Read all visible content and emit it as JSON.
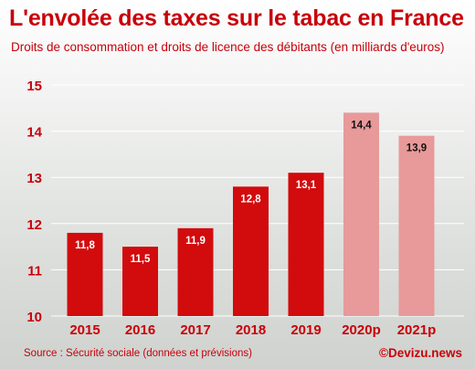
{
  "header": {
    "title": "L'envolée des taxes sur le tabac en France",
    "subtitle": "Droits de consommation et droits de licence des débitants (en milliards d'euros)"
  },
  "footer": {
    "source": "Source : Sécurité sociale (données et prévisions)",
    "credit": "©Devizu.news"
  },
  "colors": {
    "accent": "#c8000a",
    "bar_actual": "#d20b0d",
    "bar_forecast": "#e8999a",
    "grid": "#ffffff"
  },
  "chart_data": {
    "type": "bar",
    "categories": [
      "2015",
      "2016",
      "2017",
      "2018",
      "2019",
      "2020p",
      "2021p"
    ],
    "values": [
      11.8,
      11.5,
      11.9,
      12.8,
      13.1,
      14.4,
      13.9
    ],
    "labels": [
      "11,8",
      "11,5",
      "11,9",
      "12,8",
      "13,1",
      "14,4",
      "13,9"
    ],
    "forecast": [
      false,
      false,
      false,
      false,
      false,
      true,
      true
    ],
    "ylim": [
      10,
      15
    ],
    "yticks": [
      10,
      11,
      12,
      13,
      14,
      15
    ],
    "grid": true
  }
}
